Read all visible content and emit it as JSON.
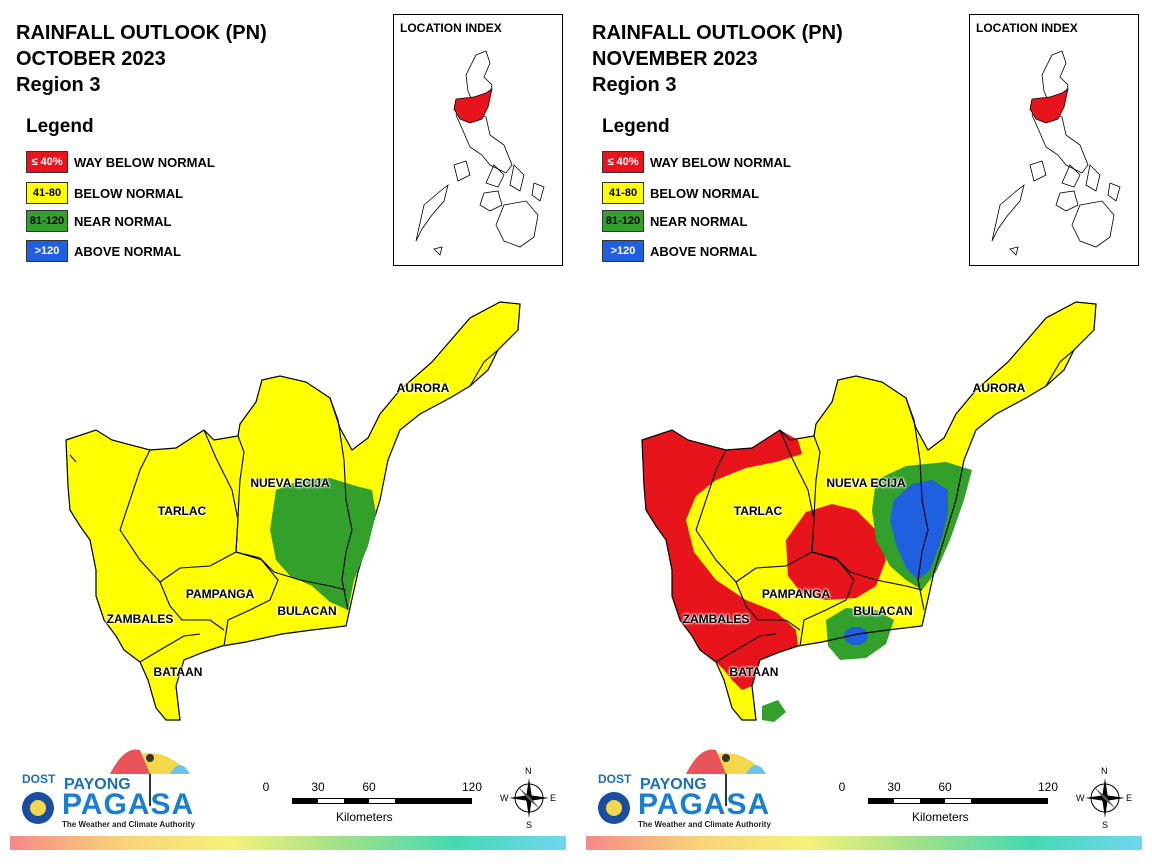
{
  "panels": [
    {
      "title_line1": "RAINFALL OUTLOOK (PN)",
      "title_line2": "OCTOBER 2023",
      "title_line3": "Region 3"
    },
    {
      "title_line1": "RAINFALL OUTLOOK (PN)",
      "title_line2": "NOVEMBER 2023",
      "title_line3": "Region 3"
    }
  ],
  "legend": {
    "title": "Legend",
    "items": [
      {
        "range": "≤ 40%",
        "label": "WAY BELOW NORMAL",
        "color": "#e8141b",
        "text_color": "#ffffff"
      },
      {
        "range": "41-80",
        "label": "BELOW NORMAL",
        "color": "#ffff00",
        "text_color": "#000000"
      },
      {
        "range": "81-120",
        "label": "NEAR NORMAL",
        "color": "#33a02c",
        "text_color": "#000000"
      },
      {
        "range": ">120",
        "label": "ABOVE NORMAL",
        "color": "#1f5fe0",
        "text_color": "#ffffff"
      }
    ]
  },
  "inset": {
    "title": "LOCATION INDEX"
  },
  "provinces": {
    "aurora": "AURORA",
    "nueva_ecija": "NUEVA ECIJA",
    "tarlac": "TARLAC",
    "pampanga": "PAMPANGA",
    "bulacan": "BULACAN",
    "zambales": "ZAMBALES",
    "bataan": "BATAAN"
  },
  "scale": {
    "ticks": [
      "0",
      "30",
      "60",
      "120"
    ],
    "unit": "Kilometers"
  },
  "compass": {
    "n": "N",
    "s": "S",
    "e": "E",
    "w": "W"
  },
  "logo": {
    "dost": "DOST",
    "payong": "PAYONG",
    "pagasa": "PAGASA",
    "tagline": "The Weather and Climate Authority"
  },
  "colors": {
    "way_below": "#e8141b",
    "below": "#ffff00",
    "near": "#33a02c",
    "above": "#1f5fe0"
  }
}
